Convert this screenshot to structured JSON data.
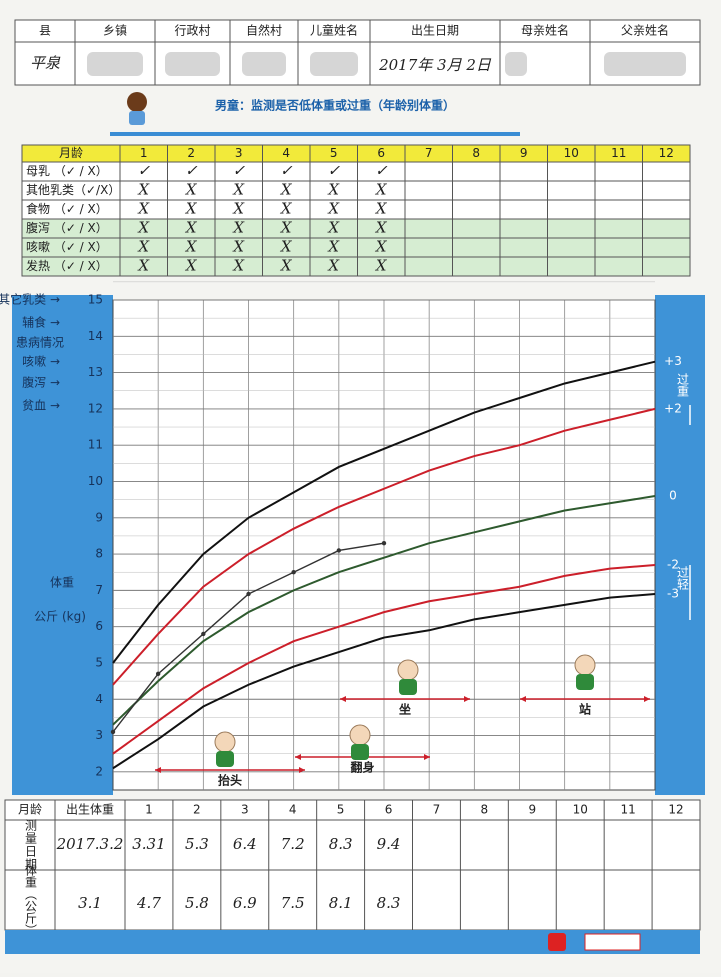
{
  "header_table": {
    "columns": [
      "县",
      "乡镇",
      "行政村",
      "自然村",
      "儿童姓名",
      "出生日期",
      "母亲姓名",
      "父亲姓名"
    ],
    "county": "平泉",
    "birth_date": "2017年 3月 2日"
  },
  "title": "男童：监测是否低体重或过重（年龄别体重）",
  "feeding_table": {
    "corner": "月龄",
    "months": [
      "1",
      "2",
      "3",
      "4",
      "5",
      "6",
      "7",
      "8",
      "9",
      "10",
      "11",
      "12"
    ],
    "rows": [
      {
        "label": "母乳 （✓ / X）",
        "marks": [
          "✓",
          "✓",
          "✓",
          "✓",
          "✓",
          "✓"
        ]
      },
      {
        "label": "其他乳类（✓/X）",
        "marks": [
          "X",
          "X",
          "X",
          "X",
          "X",
          "X"
        ]
      },
      {
        "label": "食物 （✓ / X）",
        "marks": [
          "X",
          "X",
          "X",
          "X",
          "X",
          "X"
        ]
      },
      {
        "label": "腹泻 （✓ / X）",
        "marks": [
          "X",
          "X",
          "X",
          "X",
          "X",
          "X"
        ]
      },
      {
        "label": "咳嗽 （✓ / X）",
        "marks": [
          "X",
          "X",
          "X",
          "X",
          "X",
          "X"
        ]
      },
      {
        "label": "发热 （✓ / X）",
        "marks": [
          "X",
          "X",
          "X",
          "X",
          "X",
          "X"
        ]
      }
    ]
  },
  "chart_data": {
    "type": "line",
    "y_label": "体重",
    "y_unit": "公斤 (kg)",
    "x": [
      0,
      1,
      2,
      3,
      4,
      5,
      6,
      7,
      8,
      9,
      10,
      11,
      12
    ],
    "xlim": [
      0,
      12
    ],
    "ylim": [
      1.5,
      15
    ],
    "yticks": [
      2,
      3,
      4,
      5,
      6,
      7,
      8,
      9,
      10,
      11,
      12,
      13,
      14,
      15
    ],
    "series": [
      {
        "name": "+3",
        "color": "#111111",
        "values": [
          5.0,
          6.6,
          8.0,
          9.0,
          9.7,
          10.4,
          10.9,
          11.4,
          11.9,
          12.3,
          12.7,
          13.0,
          13.3
        ]
      },
      {
        "name": "+2",
        "color": "#cc1f2a",
        "values": [
          4.4,
          5.8,
          7.1,
          8.0,
          8.7,
          9.3,
          9.8,
          10.3,
          10.7,
          11.0,
          11.4,
          11.7,
          12.0
        ]
      },
      {
        "name": "0",
        "color": "#2e5a2e",
        "values": [
          3.3,
          4.5,
          5.6,
          6.4,
          7.0,
          7.5,
          7.9,
          8.3,
          8.6,
          8.9,
          9.2,
          9.4,
          9.6
        ]
      },
      {
        "name": "-2",
        "color": "#cc1f2a",
        "values": [
          2.5,
          3.4,
          4.3,
          5.0,
          5.6,
          6.0,
          6.4,
          6.7,
          6.9,
          7.1,
          7.4,
          7.6,
          7.7
        ]
      },
      {
        "name": "-3",
        "color": "#111111",
        "values": [
          2.1,
          2.9,
          3.8,
          4.4,
          4.9,
          5.3,
          5.7,
          5.9,
          6.2,
          6.4,
          6.6,
          6.8,
          6.9
        ]
      },
      {
        "color": "#333333",
        "values": [
          3.1,
          4.7,
          5.8,
          6.9,
          7.5,
          8.1,
          8.3,
          null,
          null,
          null,
          null,
          null,
          null
        ]
      }
    ],
    "left_notes": [
      "其它乳类 →",
      "辅食 →",
      "患病情况",
      "咳嗽 →",
      "腹泻 →",
      "贫血 →"
    ],
    "overweight": "过重",
    "underweight": "过轻",
    "milestones": [
      "抬头",
      "翻身",
      "坐",
      "站"
    ]
  },
  "measure_table": {
    "corner": "月龄",
    "birth": "出生体重",
    "months": [
      "1",
      "2",
      "3",
      "4",
      "5",
      "6",
      "7",
      "8",
      "9",
      "10",
      "11",
      "12"
    ],
    "date_label": "测量日期",
    "dates": [
      "2017.3.2",
      "3.31",
      "5.3",
      "6.4",
      "7.2",
      "8.3",
      "9.4"
    ],
    "weight_label": "体重（公斤）"
  }
}
